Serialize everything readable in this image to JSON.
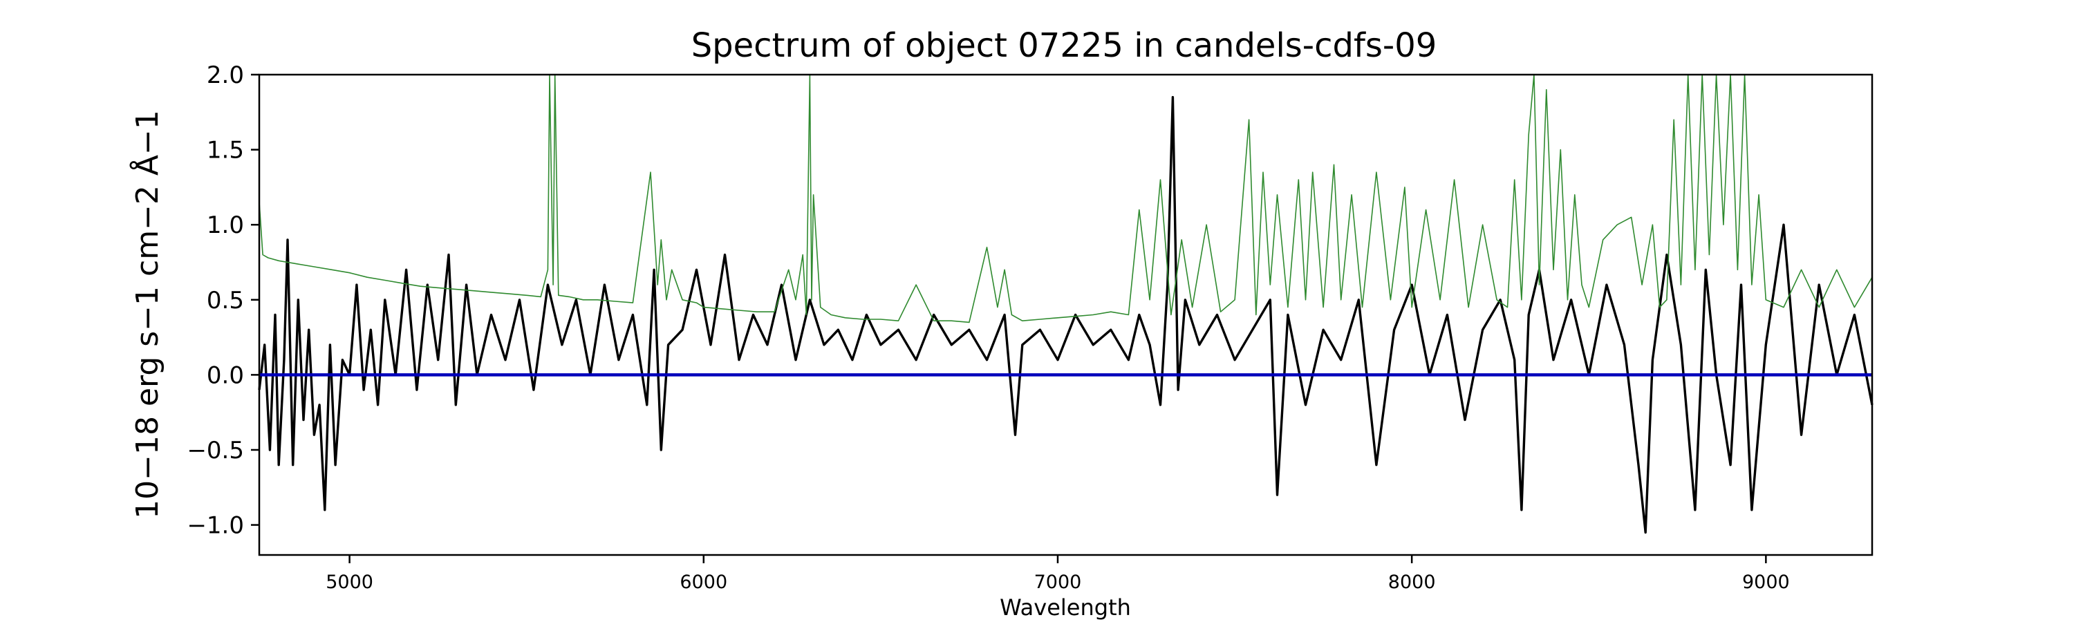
{
  "chart_data": {
    "type": "line",
    "title": "Spectrum of object 07225 in candels-cdfs-09",
    "xlabel": "Wavelength",
    "ylabel": "10−18 erg s−1 cm−2 Å−1",
    "xlim": [
      4745,
      9300
    ],
    "ylim": [
      -1.2,
      2.0
    ],
    "x_ticks": [
      5000,
      6000,
      7000,
      8000,
      9000
    ],
    "y_ticks": [
      -1.0,
      -0.5,
      0.0,
      0.5,
      1.0,
      1.5,
      2.0
    ],
    "x_tick_labels": [
      "5000",
      "6000",
      "7000",
      "8000",
      "9000"
    ],
    "y_tick_labels": [
      "−1.0",
      "−0.5",
      "0.0",
      "0.5",
      "1.0",
      "1.5",
      "2.0"
    ],
    "grid": false,
    "legend": "none",
    "series": [
      {
        "color": "#000000",
        "x": [
          4745,
          4760,
          4775,
          4790,
          4800,
          4815,
          4825,
          4840,
          4855,
          4870,
          4885,
          4900,
          4915,
          4930,
          4945,
          4960,
          4980,
          5000,
          5020,
          5040,
          5060,
          5080,
          5100,
          5130,
          5160,
          5190,
          5220,
          5250,
          5280,
          5300,
          5330,
          5360,
          5400,
          5440,
          5480,
          5520,
          5560,
          5600,
          5640,
          5680,
          5720,
          5760,
          5800,
          5840,
          5860,
          5880,
          5900,
          5940,
          5980,
          6020,
          6060,
          6100,
          6140,
          6180,
          6220,
          6260,
          6300,
          6340,
          6380,
          6420,
          6460,
          6500,
          6550,
          6600,
          6650,
          6700,
          6750,
          6800,
          6850,
          6880,
          6900,
          6950,
          7000,
          7050,
          7100,
          7150,
          7200,
          7230,
          7260,
          7290,
          7310,
          7325,
          7340,
          7360,
          7400,
          7450,
          7500,
          7550,
          7600,
          7620,
          7650,
          7700,
          7750,
          7800,
          7850,
          7900,
          7950,
          8000,
          8050,
          8100,
          8150,
          8200,
          8250,
          8290,
          8310,
          8330,
          8360,
          8400,
          8450,
          8500,
          8550,
          8600,
          8640,
          8660,
          8680,
          8720,
          8760,
          8800,
          8830,
          8860,
          8900,
          8930,
          8960,
          9000,
          9050,
          9100,
          9150,
          9200,
          9250,
          9300
        ],
        "y": [
          -0.1,
          0.2,
          -0.5,
          0.4,
          -0.6,
          0.1,
          0.9,
          -0.6,
          0.5,
          -0.3,
          0.3,
          -0.4,
          -0.2,
          -0.9,
          0.2,
          -0.6,
          0.1,
          0.0,
          0.6,
          -0.1,
          0.3,
          -0.2,
          0.5,
          0.0,
          0.7,
          -0.1,
          0.6,
          0.1,
          0.8,
          -0.2,
          0.6,
          0.0,
          0.4,
          0.1,
          0.5,
          -0.1,
          0.6,
          0.2,
          0.5,
          0.0,
          0.6,
          0.1,
          0.4,
          -0.2,
          0.7,
          -0.5,
          0.2,
          0.3,
          0.7,
          0.2,
          0.8,
          0.1,
          0.4,
          0.2,
          0.6,
          0.1,
          0.5,
          0.2,
          0.3,
          0.1,
          0.4,
          0.2,
          0.3,
          0.1,
          0.4,
          0.2,
          0.3,
          0.1,
          0.4,
          -0.4,
          0.2,
          0.3,
          0.1,
          0.4,
          0.2,
          0.3,
          0.1,
          0.4,
          0.2,
          -0.2,
          0.6,
          1.85,
          -0.1,
          0.5,
          0.2,
          0.4,
          0.1,
          0.3,
          0.5,
          -0.8,
          0.4,
          -0.2,
          0.3,
          0.1,
          0.5,
          -0.6,
          0.3,
          0.6,
          0.0,
          0.4,
          -0.3,
          0.3,
          0.5,
          0.1,
          -0.9,
          0.4,
          0.7,
          0.1,
          0.5,
          0.0,
          0.6,
          0.2,
          -0.6,
          -1.05,
          0.1,
          0.8,
          0.2,
          -0.9,
          0.7,
          0.0,
          -0.6,
          0.6,
          -0.9,
          0.2,
          1.0,
          -0.4,
          0.6,
          0.0,
          0.4,
          -0.2
        ]
      },
      {
        "color": "#2f8a2f",
        "x": [
          4745,
          4755,
          4770,
          4800,
          4850,
          4900,
          4950,
          5000,
          5050,
          5100,
          5150,
          5200,
          5250,
          5300,
          5350,
          5400,
          5450,
          5500,
          5540,
          5560,
          5565,
          5575,
          5580,
          5590,
          5620,
          5660,
          5700,
          5750,
          5800,
          5850,
          5870,
          5880,
          5895,
          5910,
          5940,
          5980,
          6000,
          6050,
          6100,
          6150,
          6200,
          6240,
          6260,
          6280,
          6290,
          6300,
          6305,
          6310,
          6330,
          6360,
          6400,
          6450,
          6500,
          6550,
          6600,
          6650,
          6700,
          6750,
          6800,
          6830,
          6850,
          6870,
          6900,
          6950,
          7000,
          7050,
          7100,
          7150,
          7200,
          7230,
          7260,
          7290,
          7320,
          7350,
          7380,
          7420,
          7460,
          7500,
          7540,
          7560,
          7580,
          7600,
          7620,
          7650,
          7680,
          7700,
          7720,
          7750,
          7780,
          7800,
          7830,
          7860,
          7900,
          7940,
          7980,
          8000,
          8040,
          8080,
          8120,
          8160,
          8200,
          8240,
          8270,
          8290,
          8310,
          8330,
          8345,
          8360,
          8380,
          8400,
          8420,
          8440,
          8460,
          8480,
          8500,
          8540,
          8580,
          8620,
          8650,
          8680,
          8700,
          8720,
          8740,
          8760,
          8780,
          8800,
          8820,
          8840,
          8860,
          8880,
          8900,
          8920,
          8940,
          8960,
          8980,
          9000,
          9050,
          9100,
          9150,
          9200,
          9250,
          9300
        ],
        "y": [
          1.15,
          0.8,
          0.78,
          0.76,
          0.74,
          0.72,
          0.7,
          0.68,
          0.65,
          0.63,
          0.61,
          0.59,
          0.58,
          0.57,
          0.56,
          0.55,
          0.54,
          0.53,
          0.52,
          0.7,
          2.0,
          0.6,
          2.0,
          0.53,
          0.52,
          0.5,
          0.5,
          0.49,
          0.48,
          1.35,
          0.6,
          0.9,
          0.5,
          0.7,
          0.5,
          0.48,
          0.45,
          0.44,
          0.43,
          0.42,
          0.42,
          0.7,
          0.5,
          0.8,
          0.4,
          2.0,
          0.5,
          1.2,
          0.45,
          0.4,
          0.38,
          0.37,
          0.37,
          0.36,
          0.6,
          0.36,
          0.36,
          0.35,
          0.85,
          0.45,
          0.7,
          0.4,
          0.36,
          0.37,
          0.38,
          0.39,
          0.4,
          0.42,
          0.4,
          1.1,
          0.5,
          1.3,
          0.4,
          0.9,
          0.45,
          1.0,
          0.42,
          0.5,
          1.7,
          0.4,
          1.35,
          0.6,
          1.2,
          0.45,
          1.3,
          0.5,
          1.35,
          0.45,
          1.4,
          0.5,
          1.2,
          0.45,
          1.35,
          0.5,
          1.25,
          0.45,
          1.1,
          0.5,
          1.3,
          0.45,
          1.0,
          0.5,
          0.45,
          1.3,
          0.5,
          1.6,
          2.0,
          0.6,
          1.9,
          0.7,
          1.5,
          0.5,
          1.2,
          0.6,
          0.45,
          0.9,
          1.0,
          1.05,
          0.6,
          1.0,
          0.45,
          0.5,
          1.7,
          0.6,
          2.0,
          0.7,
          2.0,
          0.8,
          2.0,
          1.0,
          2.0,
          0.7,
          2.0,
          0.6,
          1.2,
          0.5,
          0.45,
          0.7,
          0.45,
          0.7,
          0.45,
          0.65
        ]
      },
      {
        "color": "#0000bb",
        "x": [
          4745,
          9300
        ],
        "y": [
          0.0,
          0.0
        ]
      }
    ]
  }
}
